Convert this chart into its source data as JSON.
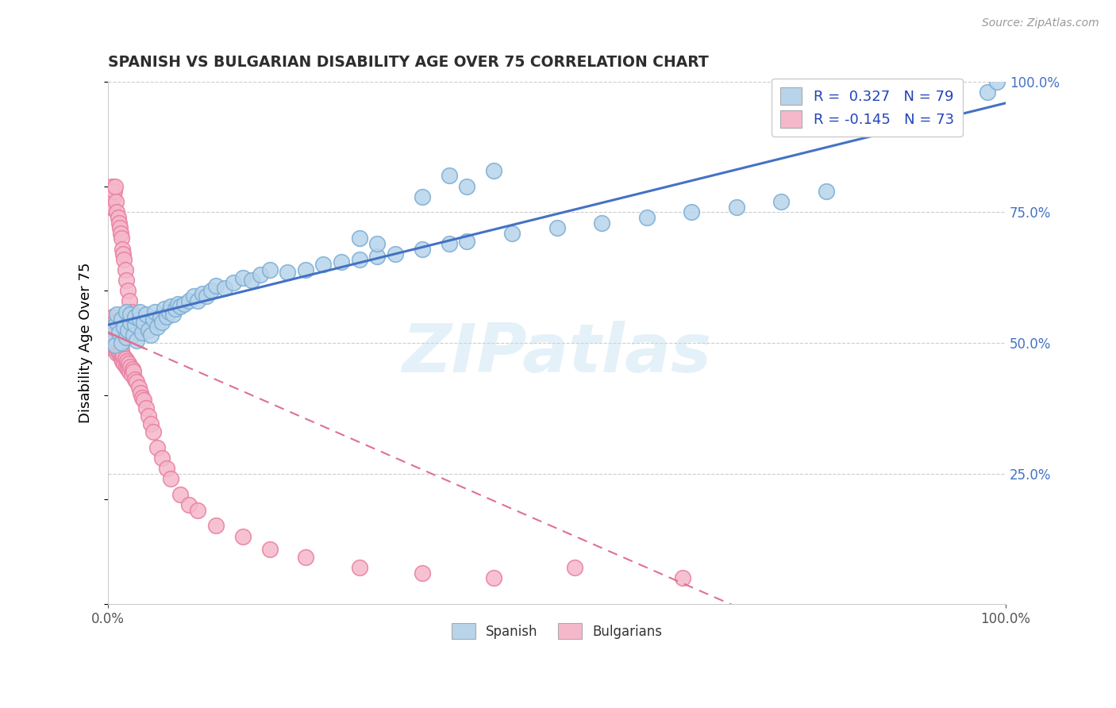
{
  "title": "SPANISH VS BULGARIAN DISABILITY AGE OVER 75 CORRELATION CHART",
  "source_text": "Source: ZipAtlas.com",
  "ylabel": "Disability Age Over 75",
  "xmin": 0.0,
  "xmax": 1.0,
  "ymin": 0.0,
  "ymax": 1.0,
  "spanish_fill": "#b8d4ea",
  "spanish_edge": "#7aadd4",
  "bulgarian_fill": "#f5b8cb",
  "bulgarian_edge": "#e87fa0",
  "trend_spanish_color": "#4472c4",
  "trend_bulgarian_color": "#e07090",
  "trend_bulgarian_dash_color": "#f0b0c0",
  "legend_line1": "R =  0.327   N = 79",
  "legend_line2": "R = -0.145   N = 73",
  "watermark": "ZIPatlas",
  "background_color": "#ffffff",
  "grid_color": "#cccccc",
  "title_color": "#2d2d2d",
  "source_color": "#999999",
  "right_tick_color": "#4472c4",
  "sp_x": [
    0.005,
    0.005,
    0.008,
    0.01,
    0.01,
    0.012,
    0.015,
    0.015,
    0.018,
    0.02,
    0.02,
    0.022,
    0.025,
    0.025,
    0.028,
    0.03,
    0.03,
    0.032,
    0.035,
    0.035,
    0.038,
    0.04,
    0.042,
    0.045,
    0.048,
    0.05,
    0.052,
    0.055,
    0.058,
    0.06,
    0.063,
    0.065,
    0.068,
    0.07,
    0.072,
    0.075,
    0.078,
    0.08,
    0.085,
    0.09,
    0.095,
    0.1,
    0.105,
    0.11,
    0.115,
    0.12,
    0.13,
    0.14,
    0.15,
    0.16,
    0.17,
    0.18,
    0.2,
    0.22,
    0.24,
    0.26,
    0.28,
    0.3,
    0.32,
    0.35,
    0.38,
    0.4,
    0.45,
    0.5,
    0.55,
    0.6,
    0.65,
    0.7,
    0.75,
    0.8,
    0.35,
    0.4,
    0.43,
    0.3,
    0.28,
    0.9,
    0.98,
    0.99,
    0.38
  ],
  "sp_y": [
    0.51,
    0.53,
    0.495,
    0.54,
    0.555,
    0.52,
    0.5,
    0.545,
    0.53,
    0.51,
    0.56,
    0.525,
    0.54,
    0.555,
    0.515,
    0.535,
    0.55,
    0.505,
    0.545,
    0.56,
    0.52,
    0.54,
    0.555,
    0.525,
    0.515,
    0.545,
    0.56,
    0.53,
    0.55,
    0.54,
    0.565,
    0.55,
    0.56,
    0.57,
    0.555,
    0.565,
    0.575,
    0.57,
    0.575,
    0.58,
    0.59,
    0.58,
    0.595,
    0.59,
    0.6,
    0.61,
    0.605,
    0.615,
    0.625,
    0.62,
    0.63,
    0.64,
    0.635,
    0.64,
    0.65,
    0.655,
    0.66,
    0.665,
    0.67,
    0.68,
    0.69,
    0.695,
    0.71,
    0.72,
    0.73,
    0.74,
    0.75,
    0.76,
    0.77,
    0.79,
    0.78,
    0.8,
    0.83,
    0.69,
    0.7,
    0.92,
    0.98,
    1.0,
    0.82
  ],
  "bg_x": [
    0.001,
    0.001,
    0.002,
    0.002,
    0.002,
    0.003,
    0.003,
    0.003,
    0.004,
    0.004,
    0.004,
    0.005,
    0.005,
    0.005,
    0.005,
    0.006,
    0.006,
    0.007,
    0.007,
    0.007,
    0.008,
    0.008,
    0.009,
    0.009,
    0.01,
    0.01,
    0.011,
    0.011,
    0.012,
    0.013,
    0.013,
    0.014,
    0.015,
    0.015,
    0.016,
    0.017,
    0.018,
    0.019,
    0.02,
    0.021,
    0.022,
    0.023,
    0.024,
    0.025,
    0.026,
    0.027,
    0.028,
    0.03,
    0.032,
    0.034,
    0.036,
    0.038,
    0.04,
    0.042,
    0.045,
    0.048,
    0.05,
    0.055,
    0.06,
    0.065,
    0.07,
    0.08,
    0.09,
    0.1,
    0.12,
    0.15,
    0.18,
    0.22,
    0.28,
    0.35,
    0.43,
    0.52,
    0.64
  ],
  "bg_y": [
    0.5,
    0.52,
    0.51,
    0.53,
    0.545,
    0.5,
    0.52,
    0.54,
    0.51,
    0.53,
    0.545,
    0.49,
    0.51,
    0.53,
    0.55,
    0.495,
    0.515,
    0.5,
    0.52,
    0.54,
    0.49,
    0.51,
    0.495,
    0.515,
    0.48,
    0.5,
    0.485,
    0.505,
    0.48,
    0.495,
    0.515,
    0.48,
    0.47,
    0.49,
    0.465,
    0.475,
    0.46,
    0.47,
    0.455,
    0.465,
    0.45,
    0.46,
    0.445,
    0.455,
    0.44,
    0.45,
    0.445,
    0.43,
    0.425,
    0.415,
    0.405,
    0.395,
    0.39,
    0.375,
    0.36,
    0.345,
    0.33,
    0.3,
    0.28,
    0.26,
    0.24,
    0.21,
    0.19,
    0.18,
    0.15,
    0.13,
    0.105,
    0.09,
    0.07,
    0.06,
    0.05,
    0.07,
    0.05
  ],
  "bg_high_y": [
    0.77,
    0.79,
    0.76,
    0.8,
    0.76,
    0.78,
    0.79,
    0.8,
    0.77,
    0.75,
    0.74,
    0.73,
    0.72,
    0.71,
    0.7,
    0.68,
    0.67,
    0.66,
    0.64,
    0.62,
    0.6,
    0.58,
    0.56,
    0.54,
    0.52
  ],
  "bg_high_x": [
    0.001,
    0.002,
    0.003,
    0.004,
    0.005,
    0.006,
    0.007,
    0.008,
    0.009,
    0.01,
    0.011,
    0.012,
    0.013,
    0.014,
    0.015,
    0.016,
    0.017,
    0.018,
    0.019,
    0.02,
    0.022,
    0.024,
    0.026,
    0.028,
    0.03
  ]
}
